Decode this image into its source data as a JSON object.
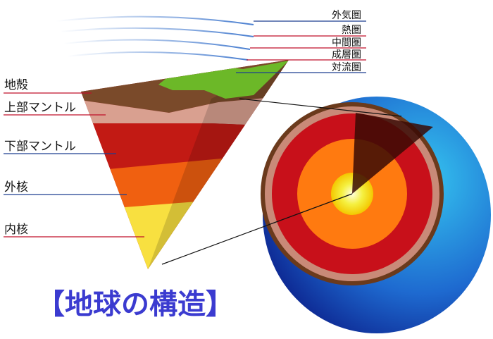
{
  "title": "【地球の構造】",
  "interior_layers": [
    {
      "label": "地殻"
    },
    {
      "label": "上部マントル"
    },
    {
      "label": "下部マントル"
    },
    {
      "label": "外核"
    },
    {
      "label": "内核"
    }
  ],
  "atmosphere_layers": [
    {
      "label": "外気圏"
    },
    {
      "label": "熱圏"
    },
    {
      "label": "中間圏"
    },
    {
      "label": "成層圏"
    },
    {
      "label": "対流圏"
    }
  ]
}
